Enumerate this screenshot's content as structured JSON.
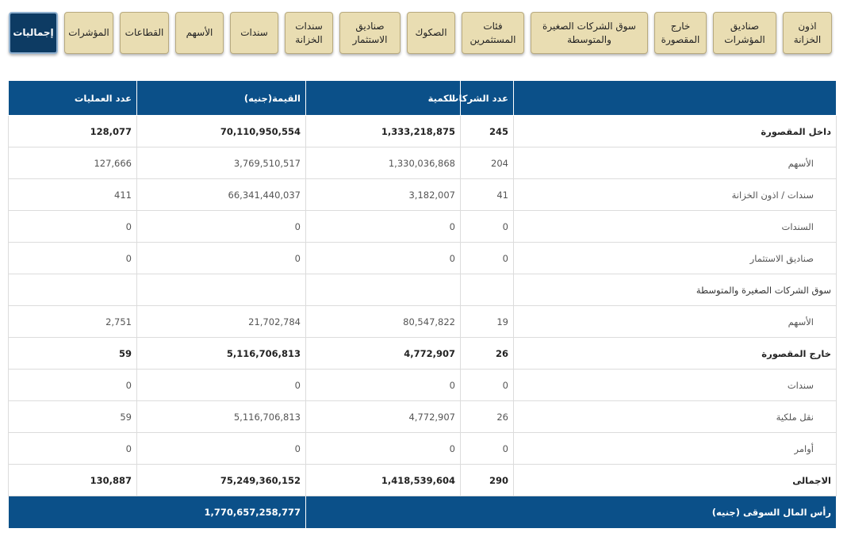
{
  "tabs": [
    "إجماليات",
    "المؤشرات",
    "القطاعات",
    "الأسهم",
    "سندات",
    "سندات الخزانة",
    "صناديق الاستثمار",
    "الصكوك",
    "فئات المستثمرين",
    "سوق الشركات الصغيرة والمتوسطة",
    "خارج المقصورة",
    "صناديق المؤشرات",
    "اذون الخزانة"
  ],
  "table": {
    "header": [
      "عدد الشركات",
      "الكمية",
      "القيمة(جنيه)",
      "عدد العمليات"
    ],
    "rows": [
      [
        "داخل المقصورة",
        "245",
        "1,333,218,875",
        "70,110,950,554",
        "128,077"
      ],
      [
        "الأسهم",
        "204",
        "1,330,036,868",
        "3,769,510,517",
        "127,666"
      ],
      [
        "سندات / اذون الخزانة",
        "41",
        "3,182,007",
        "66,341,440,037",
        "411"
      ],
      [
        "السندات",
        "0",
        "0",
        "0",
        "0"
      ],
      [
        "صناديق الاستثمار",
        "0",
        "0",
        "0",
        "0"
      ],
      [
        "سوق الشركات الصغيرة والمتوسطة"
      ],
      [
        "الأسهم",
        "19",
        "80,547,822",
        "21,702,784",
        "2,751"
      ],
      [
        "خارج المقصورة",
        "26",
        "4,772,907",
        "5,116,706,813",
        "59"
      ],
      [
        "سندات",
        "0",
        "0",
        "0",
        "0"
      ],
      [
        "نقل ملكية",
        "26",
        "4,772,907",
        "5,116,706,813",
        "59"
      ],
      [
        "أوامر",
        "0",
        "0",
        "0",
        "0"
      ],
      [
        "الاجمالى",
        "290",
        "1,418,539,604",
        "75,249,360,152",
        "130,887"
      ]
    ],
    "footer": {
      "label": "رأس المال السوقى (جنيه)",
      "value": "1,770,657,258,777"
    }
  }
}
